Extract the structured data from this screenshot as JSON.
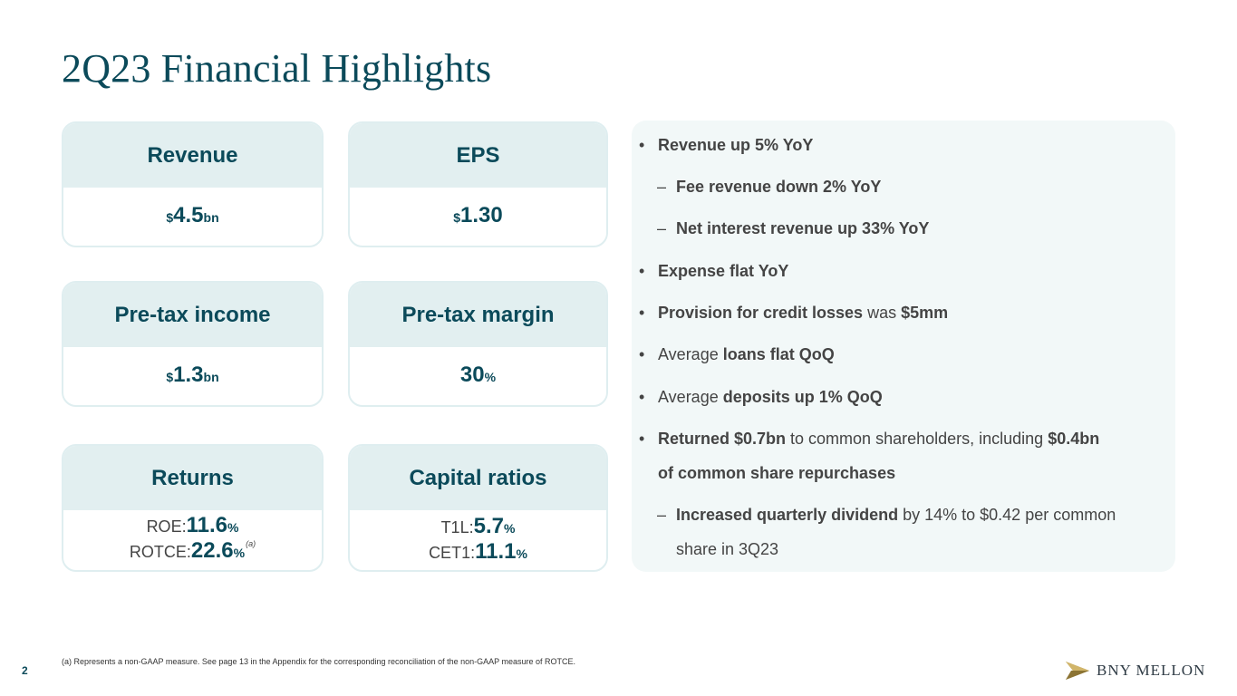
{
  "title": "2Q23 Financial Highlights",
  "cards": {
    "revenue": {
      "title": "Revenue",
      "prefix": "$",
      "value": "4.5",
      "suffix": "bn"
    },
    "eps": {
      "title": "EPS",
      "prefix": "$",
      "value": "1.30"
    },
    "pretax_income": {
      "title": "Pre-tax income",
      "prefix": "$",
      "value": "1.3",
      "suffix": "bn"
    },
    "pretax_margin": {
      "title": "Pre-tax margin",
      "value": "30",
      "suffix": "%"
    },
    "returns": {
      "title": "Returns",
      "roe_label": "ROE: ",
      "roe_value": "11.6",
      "roe_suffix": "%",
      "rotce_label": "ROTCE: ",
      "rotce_value": "22.6",
      "rotce_suffix": "%",
      "rotce_note": "(a)"
    },
    "capital": {
      "title": "Capital ratios",
      "t1l_label": "T1L: ",
      "t1l_value": "5.7",
      "t1l_suffix": "%",
      "cet1_label": "CET1: ",
      "cet1_value": "11.1",
      "cet1_suffix": "%"
    }
  },
  "bullets": {
    "marker": "•",
    "dash": "–",
    "b1": "Revenue up 5% YoY",
    "b1a": "Fee revenue down 2% YoY",
    "b1b": "Net interest revenue up 33% YoY",
    "b2": "Expense flat YoY",
    "b3_bold": "Provision for credit losses",
    "b3_mid": " was ",
    "b3_bold2": "$5mm",
    "b4_pre": "Average ",
    "b4_bold": "loans flat QoQ",
    "b5_pre": "Average ",
    "b5_bold": "deposits up 1% QoQ",
    "b6_bold": "Returned $0.7bn",
    "b6_mid": " to common shareholders, including ",
    "b6_bold2": "$0.4bn",
    "b6_line2": "of common share repurchases",
    "b6a_bold": "Increased quarterly dividend",
    "b6a_rest": " by 14% to $0.42 per common",
    "b6a_line2": "share in 3Q23"
  },
  "footnote": "(a) Represents a non-GAAP measure. See page 13 in the Appendix for the corresponding reconciliation of the non-GAAP measure of ROTCE.",
  "page_number": "2",
  "logo_text": "BNY MELLON",
  "colors": {
    "brand": "#0b4a5a",
    "card_header": "#e2eff0",
    "panel": "#f2f8f8",
    "logo_gold": "#b79a4e"
  }
}
